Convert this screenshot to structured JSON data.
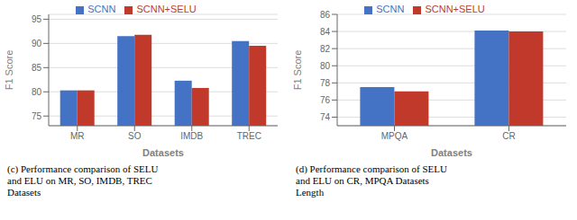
{
  "chart_data": [
    {
      "type": "bar",
      "categories": [
        "MR",
        "SO",
        "IMDB",
        "TREC"
      ],
      "series": [
        {
          "name": "SCNN",
          "color": "#4472C4",
          "values": [
            80.3,
            91.5,
            82.3,
            90.5
          ]
        },
        {
          "name": "SCNN+SELU",
          "color": "#C0392B",
          "values": [
            80.3,
            91.8,
            80.8,
            89.5
          ]
        }
      ],
      "ylim": [
        73,
        96
      ],
      "yticks": [
        75,
        80,
        85,
        90,
        95
      ],
      "ylabel": "F1 Score",
      "xlabel": "Datasets",
      "annotations": [
        "(c) Performance comparison of SELU\nand ELU on MR, SO, IMDB, TREC\nDatasets"
      ],
      "grid": true,
      "legend": "top"
    },
    {
      "type": "bar",
      "categories": [
        "MPQA",
        "CR"
      ],
      "series": [
        {
          "name": "SCNN",
          "color": "#4472C4",
          "values": [
            77.5,
            84.1
          ]
        },
        {
          "name": "SCNN+SELU",
          "color": "#C0392B",
          "values": [
            77.0,
            84.0
          ]
        }
      ],
      "ylim": [
        73,
        86
      ],
      "yticks": [
        74,
        76,
        78,
        80,
        82,
        84,
        86
      ],
      "ylabel": "F1 Score",
      "xlabel": "Datasets",
      "annotations": [
        "(d) Performance comparison of SELU\nand ELU on CR, MPQA Datasets\nLength"
      ],
      "grid": true,
      "legend": "top"
    }
  ]
}
